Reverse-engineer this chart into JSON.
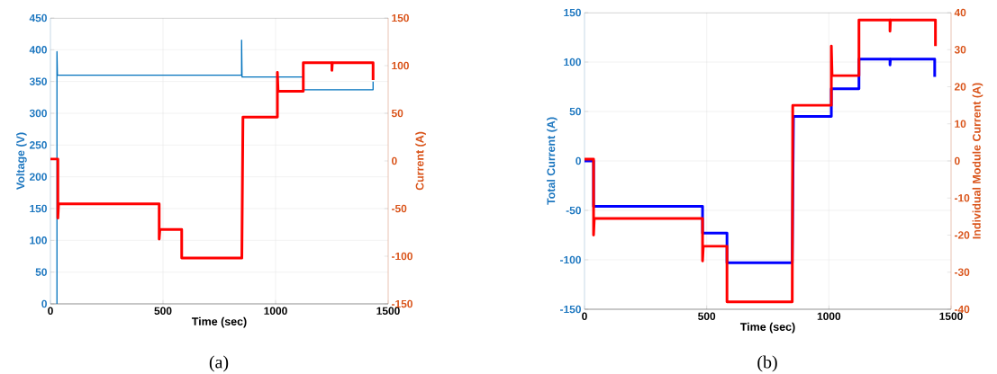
{
  "chart_data": [
    {
      "type": "line",
      "xlabel": "Time (sec)",
      "ylabel": "Voltage (V)",
      "y2label": "Current (A)",
      "xlim": [
        0,
        1500
      ],
      "xticks": [
        0,
        500,
        1000,
        1500
      ],
      "ylim": [
        0,
        450
      ],
      "yticks": [
        0,
        50,
        100,
        150,
        200,
        250,
        300,
        350,
        400,
        450
      ],
      "y2lim": [
        -150,
        150
      ],
      "y2ticks": [
        -150,
        -100,
        -50,
        0,
        50,
        100,
        150
      ],
      "grid": true,
      "annotations": [
        "(a)"
      ],
      "series": [
        {
          "color": "#0072bd",
          "axis": "y",
          "x": [
            29,
            29,
            31,
            33,
            849,
            849,
            851,
            1123,
            1123,
            1433,
            1433
          ],
          "values": [
            0,
            397,
            360,
            360,
            360,
            415,
            357,
            357,
            337,
            337,
            350
          ]
        },
        {
          "color": "#ff0000",
          "axis": "y2",
          "x": [
            0,
            33,
            33,
            36,
            483,
            483,
            486,
            583,
            583,
            850,
            855,
            1008,
            1008,
            1011,
            1123,
            1123,
            1250,
            1250,
            1252,
            1433,
            1433
          ],
          "values": [
            2,
            2,
            -60,
            -45,
            -45,
            -82,
            -72,
            -72,
            -102,
            -102,
            46,
            46,
            93,
            73,
            73,
            103,
            103,
            95,
            103,
            103,
            85
          ]
        }
      ]
    },
    {
      "type": "line",
      "xlabel": "Time (sec)",
      "ylabel": "Total Current (A)",
      "y2label": "Individual Module Current (A)",
      "xlim": [
        0,
        1500
      ],
      "xticks": [
        0,
        500,
        1000,
        1500
      ],
      "ylim": [
        -150,
        150
      ],
      "yticks": [
        -150,
        -100,
        -50,
        0,
        50,
        100,
        150
      ],
      "y2lim": [
        -40,
        40
      ],
      "y2ticks": [
        -40,
        -30,
        -20,
        -10,
        0,
        10,
        20,
        30,
        40
      ],
      "grid": true,
      "annotations": [
        "(b)"
      ],
      "series": [
        {
          "color": "#0000ff",
          "axis": "y",
          "x": [
            0,
            37,
            37,
            483,
            483,
            583,
            583,
            850,
            855,
            1010,
            1010,
            1123,
            1123,
            1250,
            1250,
            1252,
            1433,
            1433
          ],
          "values": [
            0,
            0,
            -46,
            -46,
            -73,
            -73,
            -103,
            -103,
            45,
            45,
            73,
            73,
            103,
            103,
            97,
            103,
            103,
            85
          ]
        },
        {
          "color": "#ff0000",
          "axis": "y2",
          "x": [
            0,
            37,
            37,
            40,
            483,
            483,
            486,
            583,
            583,
            850,
            852,
            1010,
            1010,
            1013,
            1123,
            1123,
            1250,
            1250,
            1252,
            1436,
            1436
          ],
          "values": [
            0.5,
            0.5,
            -20,
            -15.5,
            -15.5,
            -27,
            -23,
            -23,
            -38,
            -38,
            15,
            15,
            31,
            23,
            23,
            38,
            38,
            35,
            38,
            38,
            31
          ]
        }
      ]
    }
  ]
}
